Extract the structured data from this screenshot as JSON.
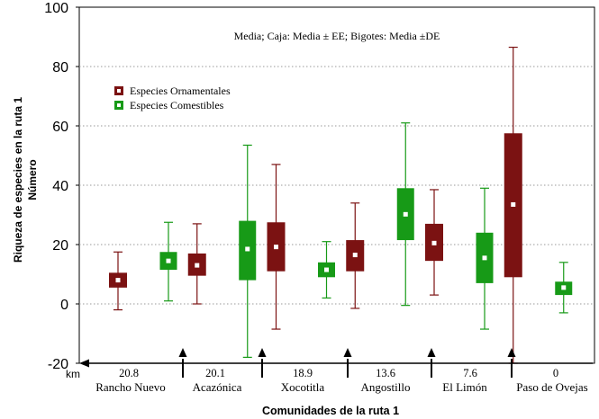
{
  "chart_data": {
    "type": "box",
    "note": "Media; Caja: Media ± EE; Bigotes: Media ±DE",
    "ylabel_line1": "Riqueza de especies en la ruta 1",
    "ylabel_line2": "Número",
    "xlabel": "Comunidades de la ruta 1",
    "ylim": [
      -20,
      100
    ],
    "yticks": [
      "-20",
      "0",
      "20",
      "40",
      "60",
      "80",
      "100"
    ],
    "grid": true,
    "km_label": "km",
    "legend": [
      {
        "name": "Especies Ornamentales",
        "color": "#7b1212"
      },
      {
        "name": "Especies Comestibles",
        "color": "#179a17"
      }
    ],
    "communities": [
      {
        "name": "Rancho Nuevo",
        "km": "20.8"
      },
      {
        "name": "Acazónica",
        "km": "20.1"
      },
      {
        "name": "Xocotitla",
        "km": "18.9"
      },
      {
        "name": "Angostillo",
        "km": "13.6"
      },
      {
        "name": "El Limón",
        "km": "7.6"
      },
      {
        "name": "Paso de Ovejas",
        "km": "0"
      }
    ],
    "series": [
      {
        "name": "Especies Ornamentales",
        "color": "#7b1212",
        "mean": [
          8,
          13,
          19.2,
          16.5,
          20.5,
          33.5
        ],
        "box_low": [
          5.5,
          9.5,
          11,
          11,
          14.5,
          9
        ],
        "box_high": [
          10.5,
          17,
          27.5,
          21.5,
          27,
          57.5
        ],
        "whisk_low": [
          -2,
          0,
          -8.5,
          -1.5,
          3,
          -20
        ],
        "whisk_high": [
          17.5,
          27,
          47,
          34,
          38.5,
          86.5
        ]
      },
      {
        "name": "Especies Comestibles",
        "color": "#179a17",
        "mean": [
          14.5,
          18.5,
          11.5,
          30.2,
          15.5,
          5.5
        ],
        "box_low": [
          11.5,
          8,
          9,
          21.5,
          7,
          3
        ],
        "box_high": [
          17.5,
          28,
          14,
          39,
          24,
          7.5
        ],
        "whisk_low": [
          1,
          -18,
          2,
          -0.5,
          -8.5,
          -3
        ],
        "whisk_high": [
          27.5,
          53.5,
          21,
          61,
          39,
          14
        ]
      }
    ]
  }
}
